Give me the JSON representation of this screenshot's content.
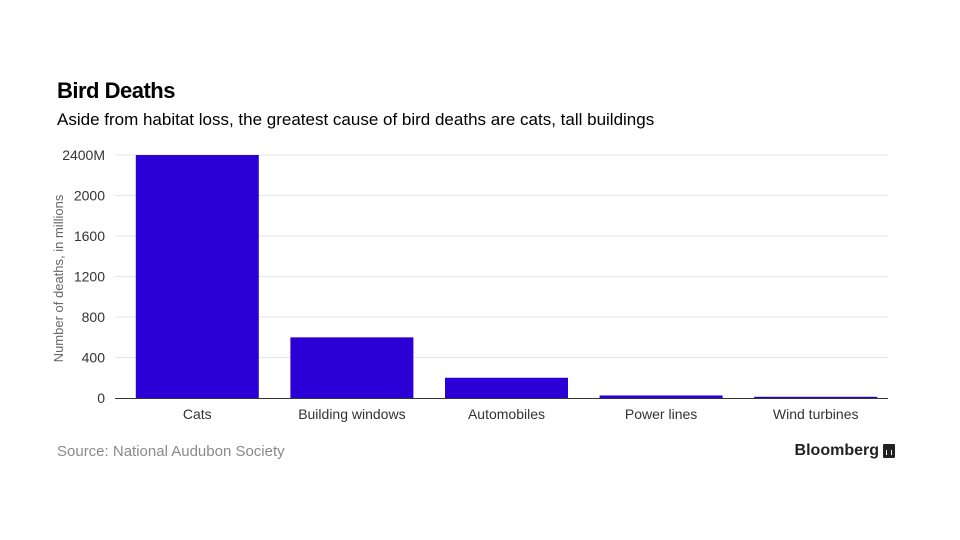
{
  "chart_data": {
    "type": "bar",
    "title": "Bird Deaths",
    "subtitle": "Aside from habitat loss, the greatest cause of bird deaths are cats, tall buildings",
    "categories": [
      "Cats",
      "Building windows",
      "Automobiles",
      "Power lines",
      "Wind turbines"
    ],
    "values": [
      2400,
      599,
      200,
      25,
      0.4
    ],
    "ylabel": "Number of deaths, in millions",
    "xlabel": "",
    "ylim": [
      0,
      2400
    ],
    "yticks": [
      0,
      400,
      800,
      1200,
      1600,
      2000,
      2400
    ],
    "ytick_labels": [
      "0",
      "400",
      "800",
      "1200",
      "1600",
      "2000",
      "2400M"
    ],
    "grid": true,
    "bar_color": "#2b00d6",
    "source": "Source: National Audubon Society",
    "brand": "Bloomberg"
  },
  "colors": {
    "bar": "#2b00d6",
    "grid": "#e6e6e6",
    "axis": "#333333"
  },
  "icons": {
    "brand_icon": "bloomberg-chart-icon"
  }
}
